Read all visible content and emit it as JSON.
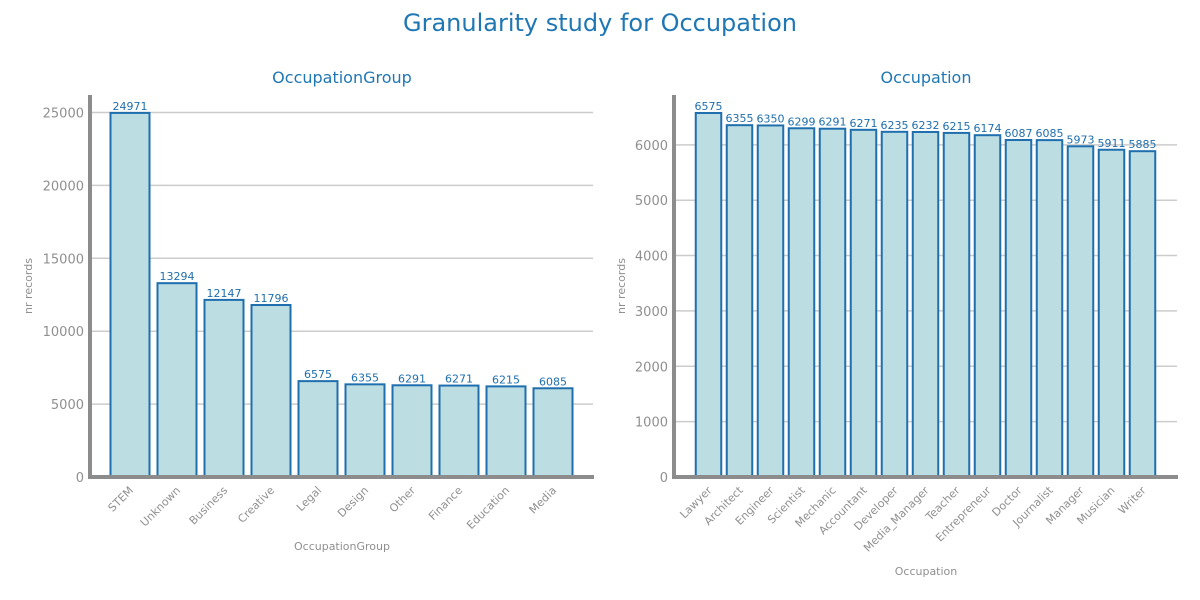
{
  "suptitle": "Granularity study for Occupation",
  "chart_data": [
    {
      "type": "bar",
      "title": "OccupationGroup",
      "xlabel": "OccupationGroup",
      "ylabel": "nr records",
      "categories": [
        "STEM",
        "Unknown",
        "Business",
        "Creative",
        "Legal",
        "Design",
        "Other",
        "Finance",
        "Education",
        "Media"
      ],
      "values": [
        24971,
        13294,
        12147,
        11796,
        6575,
        6355,
        6291,
        6271,
        6215,
        6085
      ],
      "ylim": [
        0,
        26200
      ],
      "yticks": [
        0,
        5000,
        10000,
        15000,
        20000,
        25000
      ],
      "grid": "y",
      "bar_color": "#bcdde2",
      "edge_color": "#1f6fae"
    },
    {
      "type": "bar",
      "title": "Occupation",
      "xlabel": "Occupation",
      "ylabel": "nr records",
      "categories": [
        "Lawyer",
        "Architect",
        "Engineer",
        "Scientist",
        "Mechanic",
        "Accountant",
        "Developer",
        "Media_Manager",
        "Teacher",
        "Entrepreneur",
        "Doctor",
        "Journalist",
        "Manager",
        "Musician",
        "Writer"
      ],
      "values": [
        6575,
        6355,
        6350,
        6299,
        6291,
        6271,
        6235,
        6232,
        6215,
        6174,
        6087,
        6085,
        5973,
        5911,
        5885
      ],
      "ylim": [
        0,
        6900
      ],
      "yticks": [
        0,
        1000,
        2000,
        3000,
        4000,
        5000,
        6000
      ],
      "grid": "y",
      "bar_color": "#bcdde2",
      "edge_color": "#1f6fae"
    }
  ]
}
